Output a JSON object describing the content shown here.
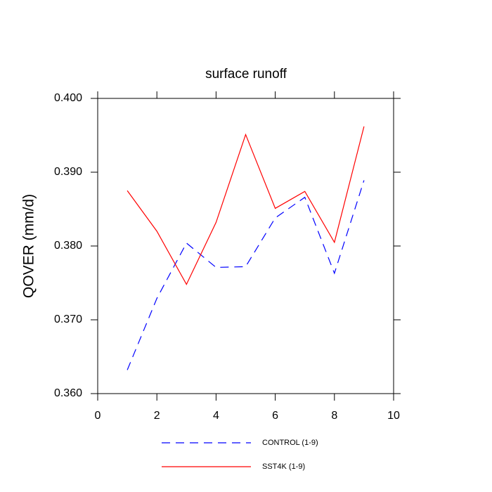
{
  "chart_data": {
    "type": "line",
    "title": "surface runoff",
    "ylabel": "QOVER  (mm/d)",
    "x": [
      1,
      2,
      3,
      4,
      5,
      6,
      7,
      8,
      9
    ],
    "series": [
      {
        "name": "CONTROL (1-9)",
        "color": "#0000ff",
        "line_style": "dashed",
        "values": [
          0.3632,
          0.3729,
          0.3804,
          0.3771,
          0.3772,
          0.3838,
          0.3866,
          0.3763,
          0.3889
        ]
      },
      {
        "name": "SST4K (1-9)",
        "color": "#ff0000",
        "line_style": "solid",
        "values": [
          0.3875,
          0.382,
          0.3748,
          0.3832,
          0.3951,
          0.3851,
          0.3874,
          0.3805,
          0.3962
        ]
      }
    ],
    "xlim": [
      0,
      10
    ],
    "xticks": [
      0,
      2,
      4,
      6,
      8,
      10
    ],
    "ylim": [
      0.36,
      0.4
    ],
    "yticks": [
      {
        "value": 0.36,
        "label": "0.360"
      },
      {
        "value": 0.37,
        "label": "0.370"
      },
      {
        "value": 0.38,
        "label": "0.380"
      },
      {
        "value": 0.39,
        "label": "0.390"
      },
      {
        "value": 0.4,
        "label": "0.400"
      }
    ],
    "legend": "bottom"
  }
}
